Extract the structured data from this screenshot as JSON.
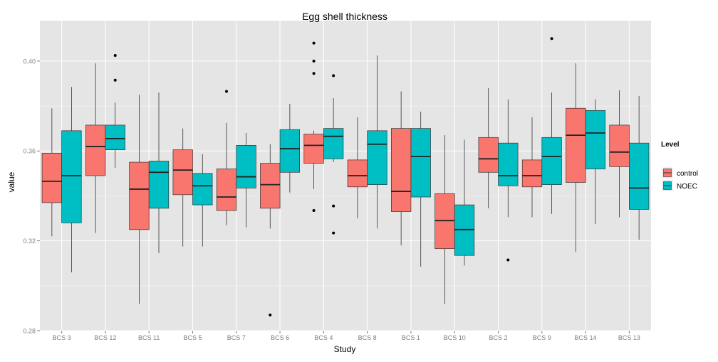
{
  "chart_data": {
    "type": "boxplot",
    "title": "Egg shell thickness",
    "xlabel": "Study",
    "ylabel": "value",
    "ylim": [
      0.28,
      0.418
    ],
    "yticks": [
      0.28,
      0.32,
      0.36,
      0.4
    ],
    "ytick_labels": [
      "0.28",
      "0.32",
      "0.36",
      "0.40"
    ],
    "grid": true,
    "legend": {
      "title": "Level",
      "position": "right",
      "entries": [
        "control",
        "NOEC"
      ]
    },
    "colors": {
      "control": "#F8766D",
      "NOEC": "#00BFC4",
      "panel": "#E5E5E5",
      "grid_major": "#FFFFFF",
      "grid_minor": "#F2F2F2",
      "text": "#7F7F7F"
    },
    "categories": [
      "BCS 3",
      "BCS 12",
      "BCS 11",
      "BCS 5",
      "BCS 7",
      "BCS 6",
      "BCS 4",
      "BCS 8",
      "BCS 1",
      "BCS 10",
      "BCS 2",
      "BCS 9",
      "BCS 14",
      "BCS 13"
    ],
    "series": [
      {
        "name": "control",
        "boxes": [
          {
            "whisker_low": 0.322,
            "q1": 0.337,
            "median": 0.3465,
            "q3": 0.359,
            "whisker_high": 0.379,
            "outliers": []
          },
          {
            "whisker_low": 0.3235,
            "q1": 0.349,
            "median": 0.362,
            "q3": 0.3715,
            "whisker_high": 0.399,
            "outliers": []
          },
          {
            "whisker_low": 0.292,
            "q1": 0.325,
            "median": 0.343,
            "q3": 0.355,
            "whisker_high": 0.385,
            "outliers": []
          },
          {
            "whisker_low": 0.3175,
            "q1": 0.3405,
            "median": 0.3515,
            "q3": 0.3605,
            "whisker_high": 0.37,
            "outliers": []
          },
          {
            "whisker_low": 0.327,
            "q1": 0.3335,
            "median": 0.3395,
            "q3": 0.352,
            "whisker_high": 0.3725,
            "outliers": [
              0.3865
            ]
          },
          {
            "whisker_low": 0.3255,
            "q1": 0.3345,
            "median": 0.345,
            "q3": 0.3545,
            "whisker_high": 0.363,
            "outliers": [
              0.287
            ]
          },
          {
            "whisker_low": 0.343,
            "q1": 0.3545,
            "median": 0.3625,
            "q3": 0.3675,
            "whisker_high": 0.369,
            "outliers": [
              0.408,
              0.4,
              0.3945,
              0.3335
            ]
          },
          {
            "whisker_low": 0.33,
            "q1": 0.344,
            "median": 0.349,
            "q3": 0.356,
            "whisker_high": 0.375,
            "outliers": []
          },
          {
            "whisker_low": 0.318,
            "q1": 0.333,
            "median": 0.342,
            "q3": 0.37,
            "whisker_high": 0.3865,
            "outliers": []
          },
          {
            "whisker_low": 0.292,
            "q1": 0.3165,
            "median": 0.329,
            "q3": 0.341,
            "whisker_high": 0.367,
            "outliers": []
          },
          {
            "whisker_low": 0.3345,
            "q1": 0.3505,
            "median": 0.3565,
            "q3": 0.366,
            "whisker_high": 0.388,
            "outliers": []
          },
          {
            "whisker_low": 0.3305,
            "q1": 0.344,
            "median": 0.349,
            "q3": 0.356,
            "whisker_high": 0.375,
            "outliers": []
          },
          {
            "whisker_low": 0.315,
            "q1": 0.346,
            "median": 0.367,
            "q3": 0.379,
            "whisker_high": 0.399,
            "outliers": []
          },
          {
            "whisker_low": 0.3305,
            "q1": 0.353,
            "median": 0.3595,
            "q3": 0.3715,
            "whisker_high": 0.387,
            "outliers": []
          }
        ]
      },
      {
        "name": "NOEC",
        "boxes": [
          {
            "whisker_low": 0.306,
            "q1": 0.328,
            "median": 0.349,
            "q3": 0.369,
            "whisker_high": 0.3885,
            "outliers": []
          },
          {
            "whisker_low": 0.3525,
            "q1": 0.3605,
            "median": 0.3655,
            "q3": 0.3715,
            "whisker_high": 0.3815,
            "outliers": [
              0.4025,
              0.3915
            ]
          },
          {
            "whisker_low": 0.3145,
            "q1": 0.3345,
            "median": 0.3505,
            "q3": 0.3555,
            "whisker_high": 0.386,
            "outliers": []
          },
          {
            "whisker_low": 0.3175,
            "q1": 0.336,
            "median": 0.3445,
            "q3": 0.35,
            "whisker_high": 0.3585,
            "outliers": []
          },
          {
            "whisker_low": 0.326,
            "q1": 0.3435,
            "median": 0.3485,
            "q3": 0.3625,
            "whisker_high": 0.368,
            "outliers": []
          },
          {
            "whisker_low": 0.3415,
            "q1": 0.3505,
            "median": 0.361,
            "q3": 0.3695,
            "whisker_high": 0.381,
            "outliers": []
          },
          {
            "whisker_low": 0.355,
            "q1": 0.3565,
            "median": 0.3665,
            "q3": 0.37,
            "whisker_high": 0.3835,
            "outliers": [
              0.3935,
              0.3355,
              0.3235
            ]
          },
          {
            "whisker_low": 0.3255,
            "q1": 0.345,
            "median": 0.363,
            "q3": 0.369,
            "whisker_high": 0.4025,
            "outliers": []
          },
          {
            "whisker_low": 0.3085,
            "q1": 0.3395,
            "median": 0.3575,
            "q3": 0.37,
            "whisker_high": 0.3775,
            "outliers": []
          },
          {
            "whisker_low": 0.309,
            "q1": 0.3135,
            "median": 0.325,
            "q3": 0.336,
            "whisker_high": 0.365,
            "outliers": []
          },
          {
            "whisker_low": 0.3305,
            "q1": 0.3445,
            "median": 0.349,
            "q3": 0.3635,
            "whisker_high": 0.383,
            "outliers": [
              0.3115
            ]
          },
          {
            "whisker_low": 0.332,
            "q1": 0.345,
            "median": 0.3575,
            "q3": 0.366,
            "whisker_high": 0.386,
            "outliers": [
              0.41
            ]
          },
          {
            "whisker_low": 0.3275,
            "q1": 0.352,
            "median": 0.368,
            "q3": 0.378,
            "whisker_high": 0.383,
            "outliers": []
          },
          {
            "whisker_low": 0.3205,
            "q1": 0.334,
            "median": 0.3435,
            "q3": 0.3635,
            "whisker_high": 0.3845,
            "outliers": []
          }
        ]
      }
    ]
  }
}
